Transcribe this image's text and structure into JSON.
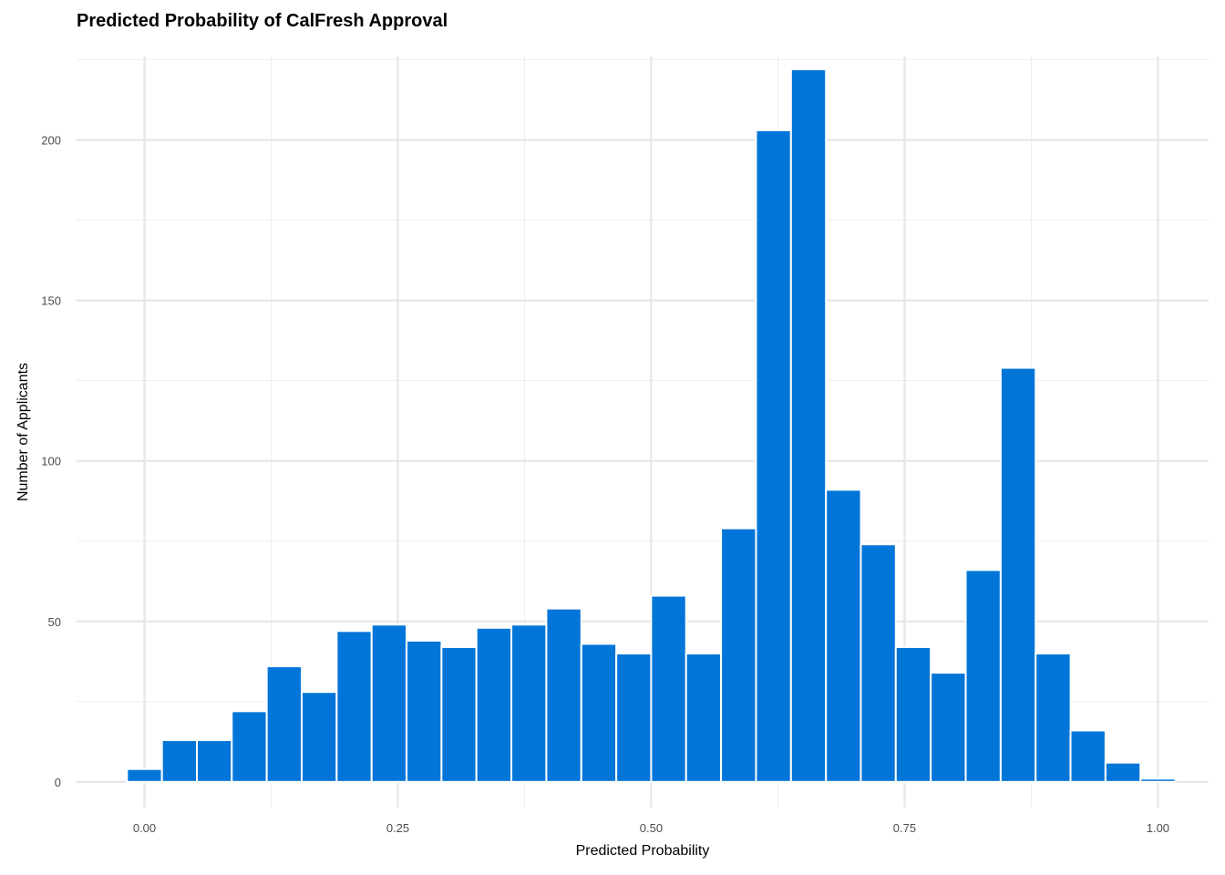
{
  "chart_data": {
    "type": "bar",
    "subtype": "histogram",
    "title": "Predicted Probability of CalFresh Approval",
    "xlabel": "Predicted Probability",
    "ylabel": "Number of Applicants",
    "bar_color": "#0275D8",
    "grid": true,
    "xlim": [
      -0.067,
      1.05
    ],
    "ylim": [
      -8,
      226
    ],
    "x_ticks": [
      0.0,
      0.25,
      0.5,
      0.75,
      1.0
    ],
    "x_tick_labels": [
      "0.00",
      "0.25",
      "0.50",
      "0.75",
      "1.00"
    ],
    "y_ticks": [
      0,
      50,
      100,
      150,
      200
    ],
    "y_tick_labels": [
      "0",
      "50",
      "100",
      "150",
      "200"
    ],
    "bin_width": 0.0345,
    "bin_centers": [
      0.0,
      0.0345,
      0.069,
      0.1034,
      0.1379,
      0.1724,
      0.2069,
      0.2414,
      0.2759,
      0.3103,
      0.3448,
      0.3793,
      0.4138,
      0.4483,
      0.4828,
      0.5172,
      0.5517,
      0.5862,
      0.6207,
      0.6552,
      0.6897,
      0.7241,
      0.7586,
      0.7931,
      0.8276,
      0.8621,
      0.8966,
      0.931,
      0.9655,
      1.0
    ],
    "values": [
      4,
      13,
      13,
      22,
      36,
      28,
      47,
      49,
      44,
      42,
      48,
      49,
      54,
      43,
      40,
      58,
      40,
      79,
      203,
      222,
      91,
      74,
      42,
      34,
      66,
      129,
      40,
      16,
      6,
      1
    ]
  }
}
